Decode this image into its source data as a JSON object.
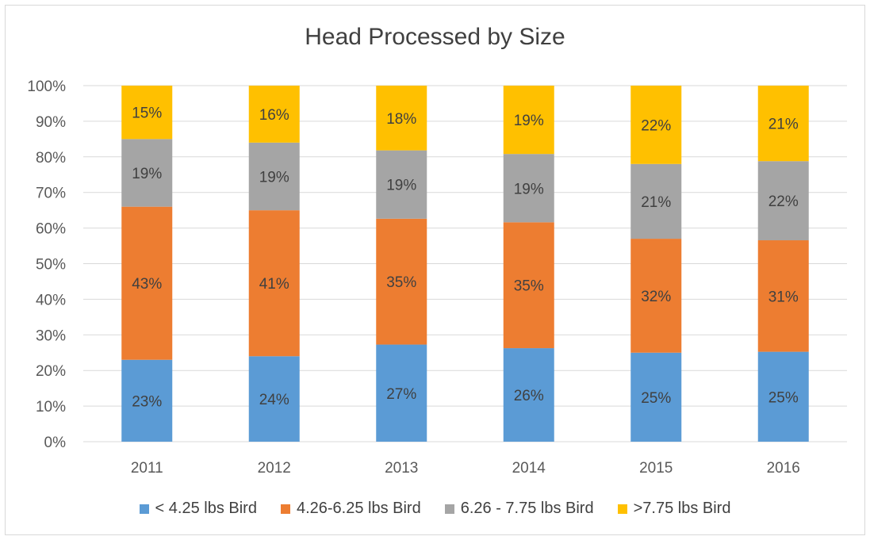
{
  "chart_data": {
    "type": "bar",
    "stacked": true,
    "percent": true,
    "title": "Head Processed by Size",
    "categories": [
      "2011",
      "2012",
      "2013",
      "2014",
      "2015",
      "2016"
    ],
    "ylim": [
      0,
      100
    ],
    "yticks": [
      "0%",
      "10%",
      "20%",
      "30%",
      "40%",
      "50%",
      "60%",
      "70%",
      "80%",
      "90%",
      "100%"
    ],
    "grid": true,
    "legend_position": "bottom",
    "series": [
      {
        "name": "< 4.25 lbs Bird",
        "color": "#5b9bd5",
        "values": [
          23,
          24,
          27,
          26,
          25,
          25
        ],
        "labels": [
          "23%",
          "24%",
          "27%",
          "26%",
          "25%",
          "25%"
        ]
      },
      {
        "name": "4.26-6.25 lbs Bird",
        "color": "#ed7d31",
        "values": [
          43,
          41,
          35,
          35,
          32,
          31
        ],
        "labels": [
          "43%",
          "41%",
          "35%",
          "35%",
          "32%",
          "31%"
        ]
      },
      {
        "name": "6.26 - 7.75 lbs Bird",
        "color": "#a5a5a5",
        "values": [
          19,
          19,
          19,
          19,
          21,
          22
        ],
        "labels": [
          "19%",
          "19%",
          "19%",
          "19%",
          "21%",
          "22%"
        ]
      },
      {
        "name": ">7.75 lbs Bird",
        "color": "#ffc000",
        "values": [
          15,
          16,
          18,
          19,
          22,
          21
        ],
        "labels": [
          "15%",
          "16%",
          "18%",
          "19%",
          "22%",
          "21%"
        ]
      }
    ]
  }
}
